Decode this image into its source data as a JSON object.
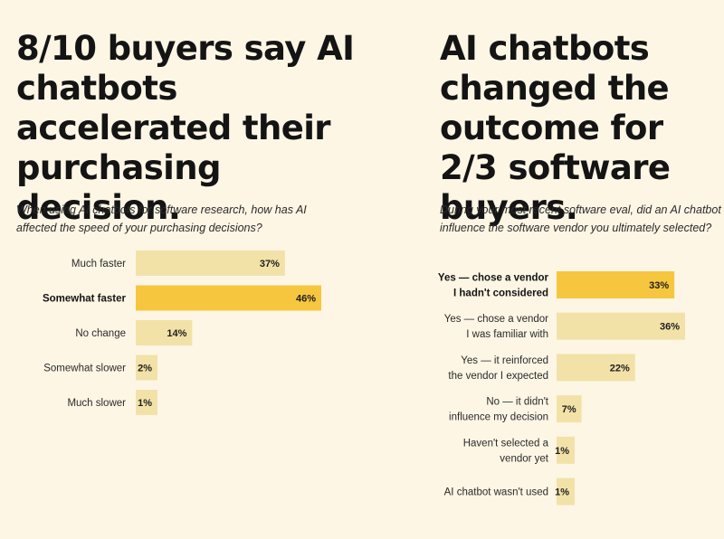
{
  "colors": {
    "background": "#fdf6e5",
    "bar": "#f2e2a8",
    "bar_highlight": "#f6c63e",
    "text": "#141414"
  },
  "left": {
    "headline": "8/10 buyers say AI chatbots accelerated their purchasing decision.",
    "question": "When using AI chatbots for software research, how has AI affected the speed of your purchasing decisions?"
  },
  "right": {
    "headline": "AI chatbots changed the outcome for 2/3 software buyers.",
    "question": "During your most recent software eval, did an AI chatbot influence the software vendor you ultimately selected?"
  },
  "chart_data": [
    {
      "type": "bar",
      "orientation": "horizontal",
      "title": "8/10 buyers say AI chatbots accelerated their purchasing decision.",
      "subtitle": "When using AI chatbots for software research, how has AI affected the speed of your purchasing decisions?",
      "categories": [
        "Much faster",
        "Somewhat faster",
        "No change",
        "Somewhat slower",
        "Much slower"
      ],
      "values": [
        37,
        46,
        14,
        2,
        1
      ],
      "value_labels": [
        "37%",
        "46%",
        "14%",
        "2%",
        "1%"
      ],
      "highlight": "Somewhat faster",
      "xlim": [
        0,
        46
      ],
      "unit": "%"
    },
    {
      "type": "bar",
      "orientation": "horizontal",
      "title": "AI chatbots changed the outcome for 2/3 software buyers.",
      "subtitle": "During your most recent software eval, did an AI chatbot influence the software vendor you ultimately selected?",
      "categories": [
        [
          "Yes — chose a vendor",
          "I hadn't considered"
        ],
        [
          "Yes — chose a vendor",
          "I was familiar with"
        ],
        [
          "Yes — it reinforced",
          "the vendor I expected"
        ],
        [
          "No — it didn't",
          "influence my decision"
        ],
        [
          "Haven't selected a",
          "vendor yet"
        ],
        [
          "AI chatbot wasn't used"
        ]
      ],
      "values": [
        33,
        36,
        22,
        7,
        1,
        1
      ],
      "value_labels": [
        "33%",
        "36%",
        "22%",
        "7%",
        "1%",
        "1%"
      ],
      "highlight_index": 0,
      "xlim": [
        0,
        36
      ],
      "unit": "%"
    }
  ]
}
